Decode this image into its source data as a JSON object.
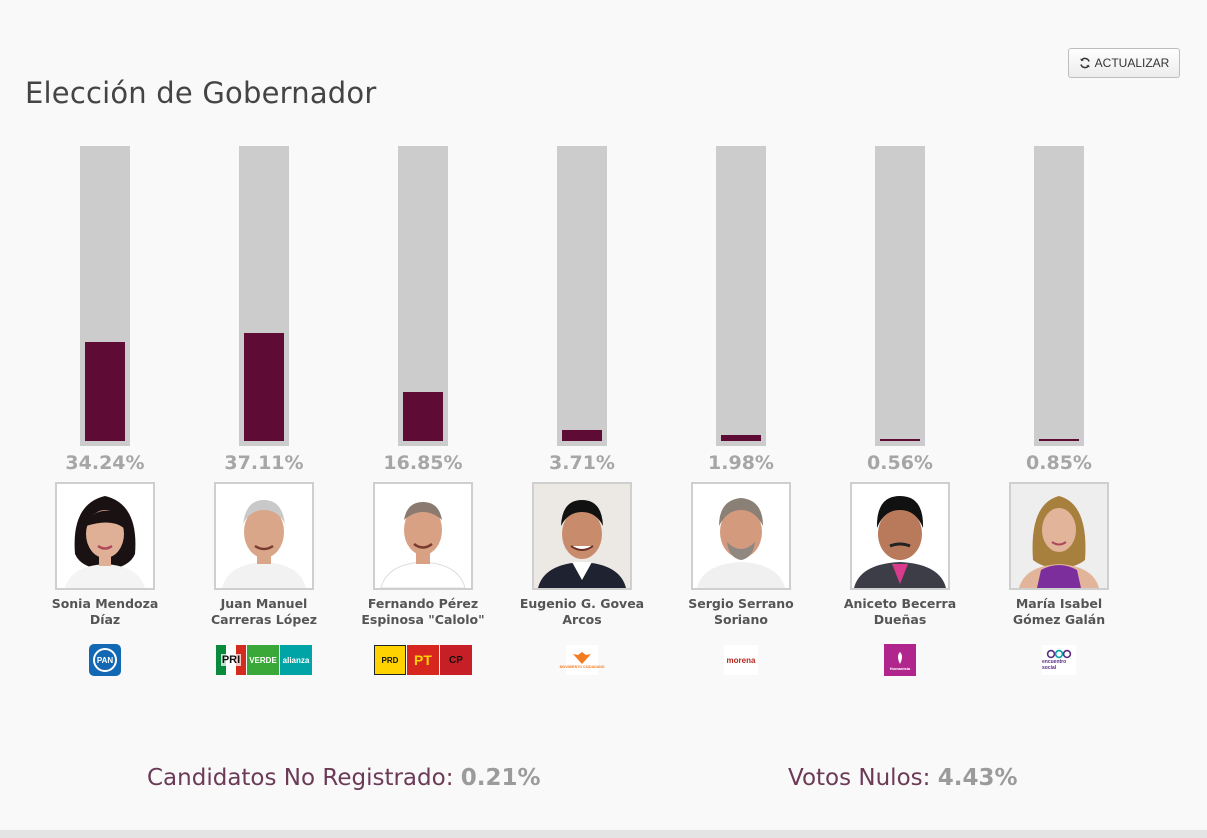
{
  "header": {
    "title": "Elección de Gobernador",
    "refresh_label": "ACTUALIZAR"
  },
  "colors": {
    "bar_fill": "#5e0b35",
    "bar_track": "#cccccc",
    "pct_text": "#a6a6a6"
  },
  "chart_data": {
    "type": "bar",
    "ylim": [
      0,
      100
    ],
    "categories": [
      "Sonia Mendoza Díaz",
      "Juan Manuel Carreras López",
      "Fernando Pérez Espinosa \"Calolo\"",
      "Eugenio G. Govea Arcos",
      "Sergio Serrano Soriano",
      "Aniceto Becerra Dueñas",
      "María Isabel Gómez Galán"
    ],
    "values": [
      34.24,
      37.11,
      16.85,
      3.71,
      1.98,
      0.56,
      0.85
    ],
    "value_labels": [
      "34.24%",
      "37.11%",
      "16.85%",
      "3.71%",
      "1.98%",
      "0.56%",
      "0.85%"
    ]
  },
  "candidates": [
    {
      "name_line1": "Sonia Mendoza",
      "name_line2": "Díaz",
      "pct": "34.24%",
      "photo_icon": "woman-portrait-icon",
      "parties": [
        {
          "label": "PAN",
          "icon": "pan-logo-icon"
        }
      ]
    },
    {
      "name_line1": "Juan Manuel",
      "name_line2": "Carreras López",
      "pct": "37.11%",
      "photo_icon": "man-portrait-icon",
      "parties": [
        {
          "label": "PRI",
          "icon": "pri-logo-icon"
        },
        {
          "label": "VERDE",
          "icon": "verde-logo-icon"
        },
        {
          "label": "alianza",
          "icon": "nueva-alianza-logo-icon"
        }
      ]
    },
    {
      "name_line1": "Fernando Pérez",
      "name_line2": "Espinosa \"Calolo\"",
      "pct": "16.85%",
      "photo_icon": "man-portrait-icon",
      "parties": [
        {
          "label": "PRD",
          "icon": "prd-logo-icon"
        },
        {
          "label": "PT",
          "icon": "pt-logo-icon"
        },
        {
          "label": "CP",
          "icon": "conciencia-popular-logo-icon"
        }
      ]
    },
    {
      "name_line1": "Eugenio G. Govea",
      "name_line2": "Arcos",
      "pct": "3.71%",
      "photo_icon": "man-portrait-icon",
      "parties": [
        {
          "label": "MOVIMIENTO CIUDADANO",
          "icon": "movimiento-ciudadano-logo-icon"
        }
      ]
    },
    {
      "name_line1": "Sergio Serrano",
      "name_line2": "Soriano",
      "pct": "1.98%",
      "photo_icon": "man-portrait-icon",
      "parties": [
        {
          "label": "morena",
          "icon": "morena-logo-icon"
        }
      ]
    },
    {
      "name_line1": "Aniceto Becerra",
      "name_line2": "Dueñas",
      "pct": "0.56%",
      "photo_icon": "man-portrait-icon",
      "parties": [
        {
          "label": "Humanista",
          "icon": "humanista-logo-icon"
        }
      ]
    },
    {
      "name_line1": "María Isabel",
      "name_line2": "Gómez Galán",
      "pct": "0.85%",
      "photo_icon": "woman-portrait-icon",
      "parties": [
        {
          "label": "encuentro social",
          "icon": "encuentro-social-logo-icon"
        }
      ]
    }
  ],
  "footer": {
    "no_registrados_label": "Candidatos No Registrado:",
    "no_registrados_value": "0.21%",
    "nulos_label": "Votos Nulos:",
    "nulos_value": "4.43%"
  }
}
